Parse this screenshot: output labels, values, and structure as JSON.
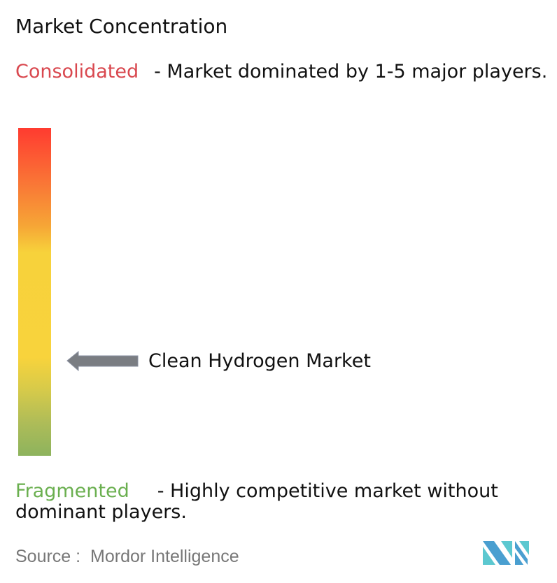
{
  "title": "Market Concentration",
  "consolidated": {
    "label": "Consolidated",
    "description": "- Market dominated by 1-5 major players.",
    "color": "#d9484f"
  },
  "fragmented": {
    "label": "Fragmented",
    "description": "- Highly competitive market without dominant players.",
    "color": "#6aaf4f"
  },
  "scale": {
    "top_color": "#ff3b30",
    "middle_color": "#f8d33c",
    "bottom_color": "#8db35d"
  },
  "indicator": {
    "label": "Clean Hydrogen Market",
    "arrow_color": "#7a7d82",
    "position": "lower-middle of scale, toward fragmented"
  },
  "source": {
    "prefix": "Source :",
    "name": "Mordor Intelligence"
  },
  "logo": {
    "text": "Mordor Intelligence",
    "colors": [
      "#4a9fd0",
      "#5cc8d0"
    ]
  }
}
